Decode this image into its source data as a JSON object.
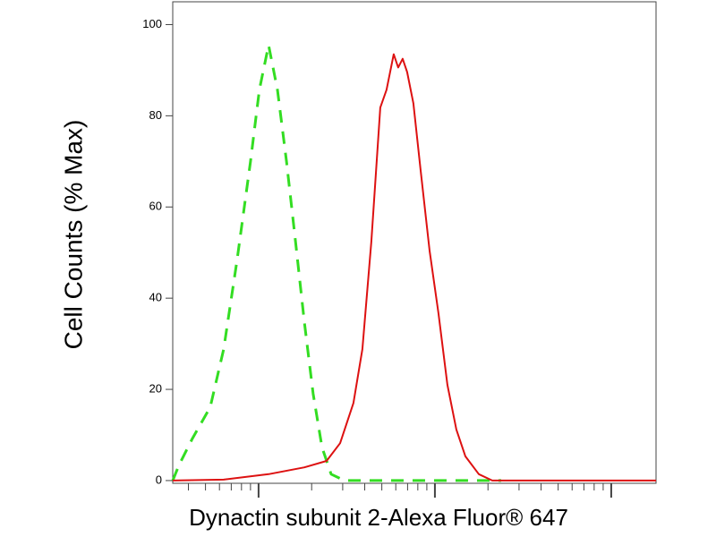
{
  "chart_data": {
    "type": "line",
    "xlabel": "Dynactin subunit 2-Alexa Fluor® 647",
    "ylabel": "Cell Counts (% Max)",
    "xscale": "log",
    "xlim": [
      32.6,
      17950
    ],
    "xticks": [
      40,
      50,
      60,
      70,
      80,
      90,
      100,
      200,
      300,
      400,
      500,
      600,
      700,
      800,
      900,
      1000,
      2000,
      3000,
      4000,
      5000,
      6000,
      7000,
      8000,
      9000,
      10000
    ],
    "ylim": [
      -0.6,
      105
    ],
    "yticks": [
      0,
      20,
      40,
      60,
      80,
      100
    ],
    "series": [
      {
        "color": "#33dd22",
        "dashed": true,
        "x": [
          32.6,
          35.3,
          42.1,
          53.2,
          63.4,
          75.5,
          90,
          101,
          114,
          128,
          144,
          162,
          182,
          204,
          229,
          258,
          307,
          2377
        ],
        "values": [
          0,
          3.3,
          9.2,
          16.1,
          28.8,
          48.4,
          70,
          85.7,
          95.5,
          85.7,
          70,
          52.4,
          34.7,
          19,
          7.3,
          1.4,
          0,
          0
        ]
      },
      {
        "color": "#dd1111",
        "dashed": false,
        "x": [
          32.6,
          63.4,
          114,
          182,
          243,
          290,
          345,
          388,
          436,
          490,
          532,
          584,
          619,
          656,
          696,
          755,
          830,
          933,
          1048,
          1178,
          1324,
          1489,
          1775,
          2115,
          17950
        ],
        "values": [
          0,
          0.2,
          1.4,
          2.9,
          4.3,
          8.2,
          17,
          28.8,
          52.4,
          81.8,
          85.7,
          93.5,
          90.6,
          92.5,
          89.6,
          82.7,
          68,
          50.4,
          36.7,
          21,
          11.2,
          5.3,
          1.4,
          0,
          0
        ]
      }
    ]
  }
}
